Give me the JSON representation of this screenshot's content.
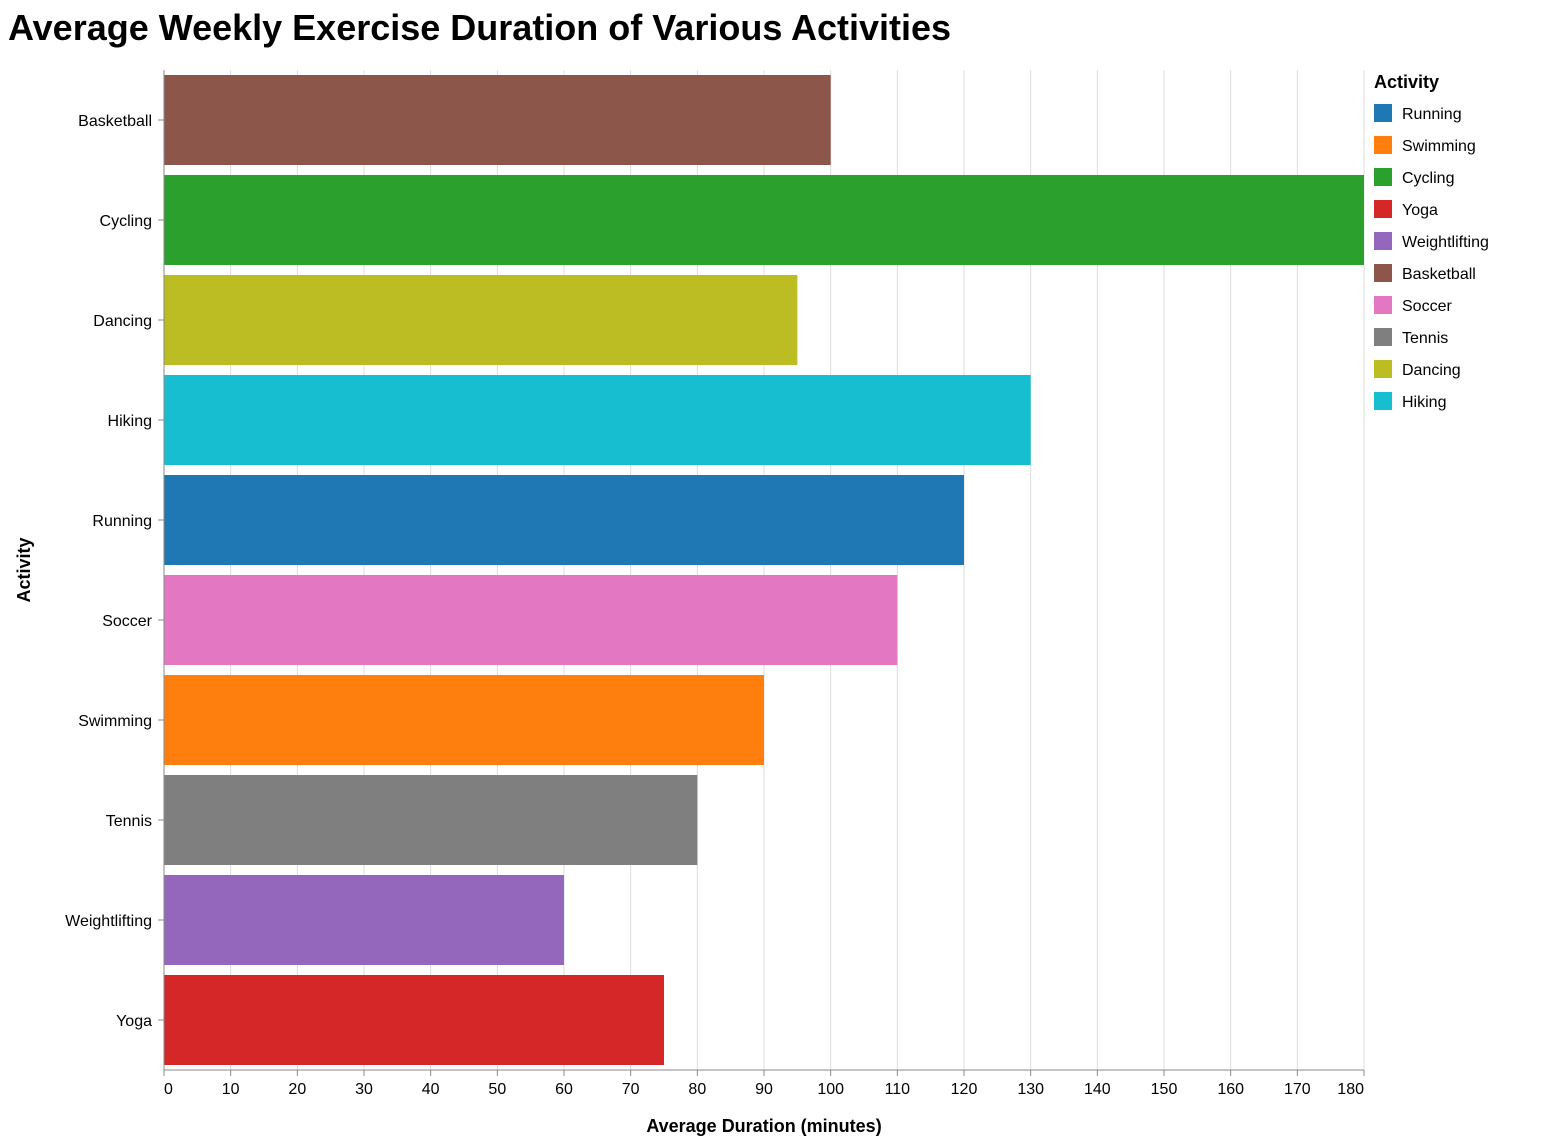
{
  "chart_data": {
    "type": "bar",
    "orientation": "horizontal",
    "title": "Average Weekly Exercise Duration of Various Activities",
    "xlabel": "Average Duration (minutes)",
    "ylabel": "Activity",
    "xlim": [
      0,
      180
    ],
    "x_ticks": [
      0,
      10,
      20,
      30,
      40,
      50,
      60,
      70,
      80,
      90,
      100,
      110,
      120,
      130,
      140,
      150,
      160,
      170,
      180
    ],
    "grid": true,
    "categories": [
      "Basketball",
      "Cycling",
      "Dancing",
      "Hiking",
      "Running",
      "Soccer",
      "Swimming",
      "Tennis",
      "Weightlifting",
      "Yoga"
    ],
    "values": [
      100,
      180,
      95,
      130,
      120,
      110,
      90,
      80,
      60,
      75
    ],
    "legend": {
      "title": "Activity",
      "placement": "right",
      "entries": [
        {
          "name": "Running",
          "color": "#1f77b4"
        },
        {
          "name": "Swimming",
          "color": "#ff7f0e"
        },
        {
          "name": "Cycling",
          "color": "#2ca02c"
        },
        {
          "name": "Yoga",
          "color": "#d62728"
        },
        {
          "name": "Weightlifting",
          "color": "#9467bd"
        },
        {
          "name": "Basketball",
          "color": "#8c564b"
        },
        {
          "name": "Soccer",
          "color": "#e377c2"
        },
        {
          "name": "Tennis",
          "color": "#7f7f7f"
        },
        {
          "name": "Dancing",
          "color": "#bcbd22"
        },
        {
          "name": "Hiking",
          "color": "#17becf"
        }
      ]
    }
  }
}
